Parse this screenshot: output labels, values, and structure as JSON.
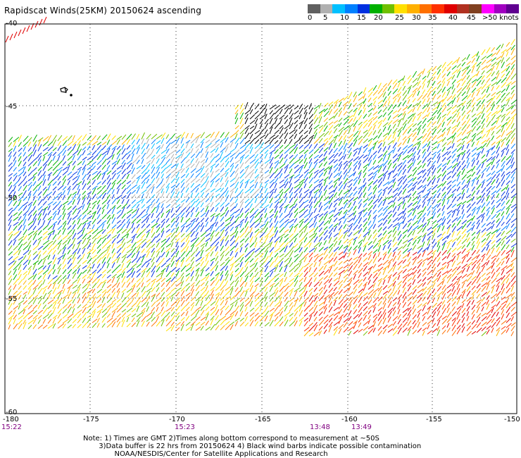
{
  "title": "Rapidscat Winds(25KM) 20150624 ascending",
  "legend": {
    "colors": [
      "#606060",
      "#b0b0b0",
      "#00c0ff",
      "#0080ff",
      "#0030e0",
      "#00b000",
      "#70c000",
      "#ffe000",
      "#ffb000",
      "#ff7000",
      "#ff3000",
      "#e00000",
      "#b03020",
      "#804020",
      "#ff00ff",
      "#a000c0",
      "#600090"
    ],
    "labels": [
      "0",
      "5",
      "10",
      "15",
      "20",
      "25",
      "30",
      "35",
      "40",
      "45",
      ">50 knots"
    ]
  },
  "axes": {
    "lon_labels": [
      "-180",
      "-175",
      "-170",
      "-165",
      "-160",
      "-155",
      "-150"
    ],
    "lat_labels": [
      "-40",
      "-45",
      "-50",
      "-55",
      "-60"
    ]
  },
  "times": [
    "15:22",
    "15:23",
    "13:48",
    "13:49"
  ],
  "notes": [
    "Note: 1) Times are GMT 2)Times along bottom correspond to measurement at ~50S",
    "       3)Data buffer is 22 hrs from 20150624 4) Black wind barbs indicate possible contamination",
    "              NOAA/NESDIS/Center for Satellite Applications and Research"
  ]
}
